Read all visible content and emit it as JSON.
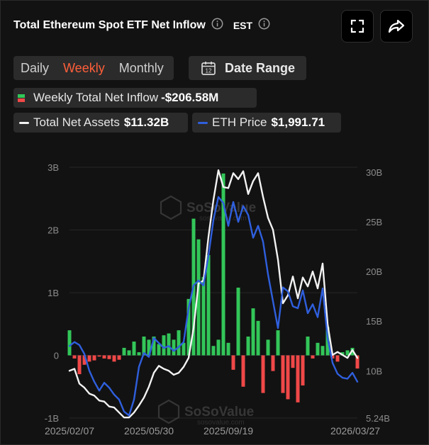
{
  "header": {
    "title": "Total Ethereum Spot ETF Net Inflow",
    "timezone": "EST",
    "fullscreen_icon": "fullscreen-icon",
    "share_icon": "share-icon",
    "info_icon": "info-circle-icon"
  },
  "tabs": [
    {
      "label": "Daily",
      "active": false
    },
    {
      "label": "Weekly",
      "active": true
    },
    {
      "label": "Monthly",
      "active": false
    }
  ],
  "date_range": {
    "label": "Date Range",
    "icon": "calendar-icon",
    "icon_text": "12"
  },
  "legend": {
    "inflow": {
      "label": "Weekly Total Net Inflow",
      "value": "-$206.58M"
    },
    "assets": {
      "label": "Total Net Assets",
      "value": "$11.32B"
    },
    "eth": {
      "label": "ETH Price",
      "value": "$1,991.71"
    }
  },
  "watermark": {
    "text": "SoSoValue",
    "sub": "sosovalue.com"
  },
  "colors": {
    "positive": "#33c659",
    "negative": "#f04848",
    "assets_line": "#f2f2f2",
    "eth_line": "#2f5fdd",
    "accent": "#ff5f3a"
  },
  "chart_data": {
    "type": "bar",
    "title": "Total Ethereum Spot ETF Net Inflow",
    "x_ticks": [
      "2025/02/07",
      "2025/05/30",
      "2025/09/19",
      "2026/03/27"
    ],
    "x_tick_index": [
      0,
      16,
      32,
      58
    ],
    "y_left": {
      "ticks": [
        "3B",
        "2B",
        "1B",
        "0",
        "-1B"
      ],
      "tick_values": [
        3,
        2,
        1,
        0,
        -1
      ],
      "range": [
        -1,
        3
      ],
      "unit": "B"
    },
    "y_right": {
      "ticks": [
        "30B",
        "25B",
        "20B",
        "15B",
        "10B",
        "5.24B"
      ],
      "tick_values": [
        30,
        25,
        20,
        15,
        10,
        5.24
      ],
      "range": [
        5.24,
        30.5
      ]
    },
    "grid": true,
    "series": [
      {
        "name": "Weekly Total Net Inflow",
        "kind": "bar",
        "unit": "B",
        "values": [
          0.4,
          -0.05,
          -0.3,
          -0.15,
          -0.1,
          -0.08,
          -0.02,
          -0.05,
          -0.06,
          -0.1,
          -0.07,
          0.12,
          0.08,
          0.22,
          0.05,
          0.3,
          0.25,
          0.3,
          0.18,
          0.32,
          0.35,
          0.25,
          0.4,
          0.2,
          0.9,
          2.18,
          1.85,
          1.25,
          1.6,
          0.15,
          0.25,
          2.9,
          0.2,
          -0.23,
          1.08,
          -0.5,
          0.3,
          0.75,
          0.55,
          -0.6,
          0.25,
          -0.25,
          0.4,
          -0.6,
          -0.7,
          -0.2,
          -0.75,
          -0.48,
          0.3,
          -0.05,
          0.2,
          0.15,
          0.45,
          -0.05,
          -0.1,
          0.05,
          0.08,
          0.12,
          -0.21
        ]
      },
      {
        "name": "Total Net Assets",
        "kind": "line",
        "axis": "right",
        "values": [
          10.0,
          10.2,
          8.7,
          8.3,
          7.7,
          7.5,
          7.0,
          6.9,
          6.4,
          6.3,
          5.8,
          5.3,
          5.3,
          5.8,
          6.5,
          7.3,
          8.4,
          9.8,
          10.5,
          10.2,
          10.0,
          9.6,
          9.8,
          10.4,
          11.3,
          14.3,
          18.8,
          19.1,
          23.5,
          27.2,
          30.2,
          28.5,
          28.4,
          29.9,
          29.3,
          30.1,
          27.8,
          29.1,
          29.9,
          27.5,
          25.4,
          24.2,
          21.2,
          16.8,
          17.6,
          19.5,
          17.3,
          19.4,
          18.5,
          20.0,
          18.3,
          20.8,
          14.7,
          11.6,
          11.9,
          11.6,
          11.3,
          12.1,
          11.3
        ]
      },
      {
        "name": "ETH Price",
        "kind": "line",
        "axis": "right",
        "values": [
          12.5,
          12.9,
          12.6,
          11.7,
          10.0,
          8.9,
          8.0,
          8.8,
          8.3,
          7.6,
          7.1,
          5.9,
          5.5,
          7.1,
          10.4,
          11.8,
          11.4,
          13.3,
          12.8,
          12.3,
          12.5,
          12.0,
          12.4,
          12.9,
          16.3,
          18.6,
          19.1,
          18.6,
          21.6,
          25.2,
          27.5,
          26.9,
          24.6,
          27.0,
          25.0,
          26.6,
          25.7,
          23.4,
          24.6,
          23.0,
          19.7,
          17.0,
          14.3,
          18.4,
          18.0,
          16.5,
          16.3,
          18.1,
          15.8,
          16.7,
          15.4,
          18.3,
          13.3,
          10.8,
          9.7,
          9.3,
          9.2,
          9.8,
          8.9
        ]
      }
    ],
    "legend_position": "top-left"
  }
}
